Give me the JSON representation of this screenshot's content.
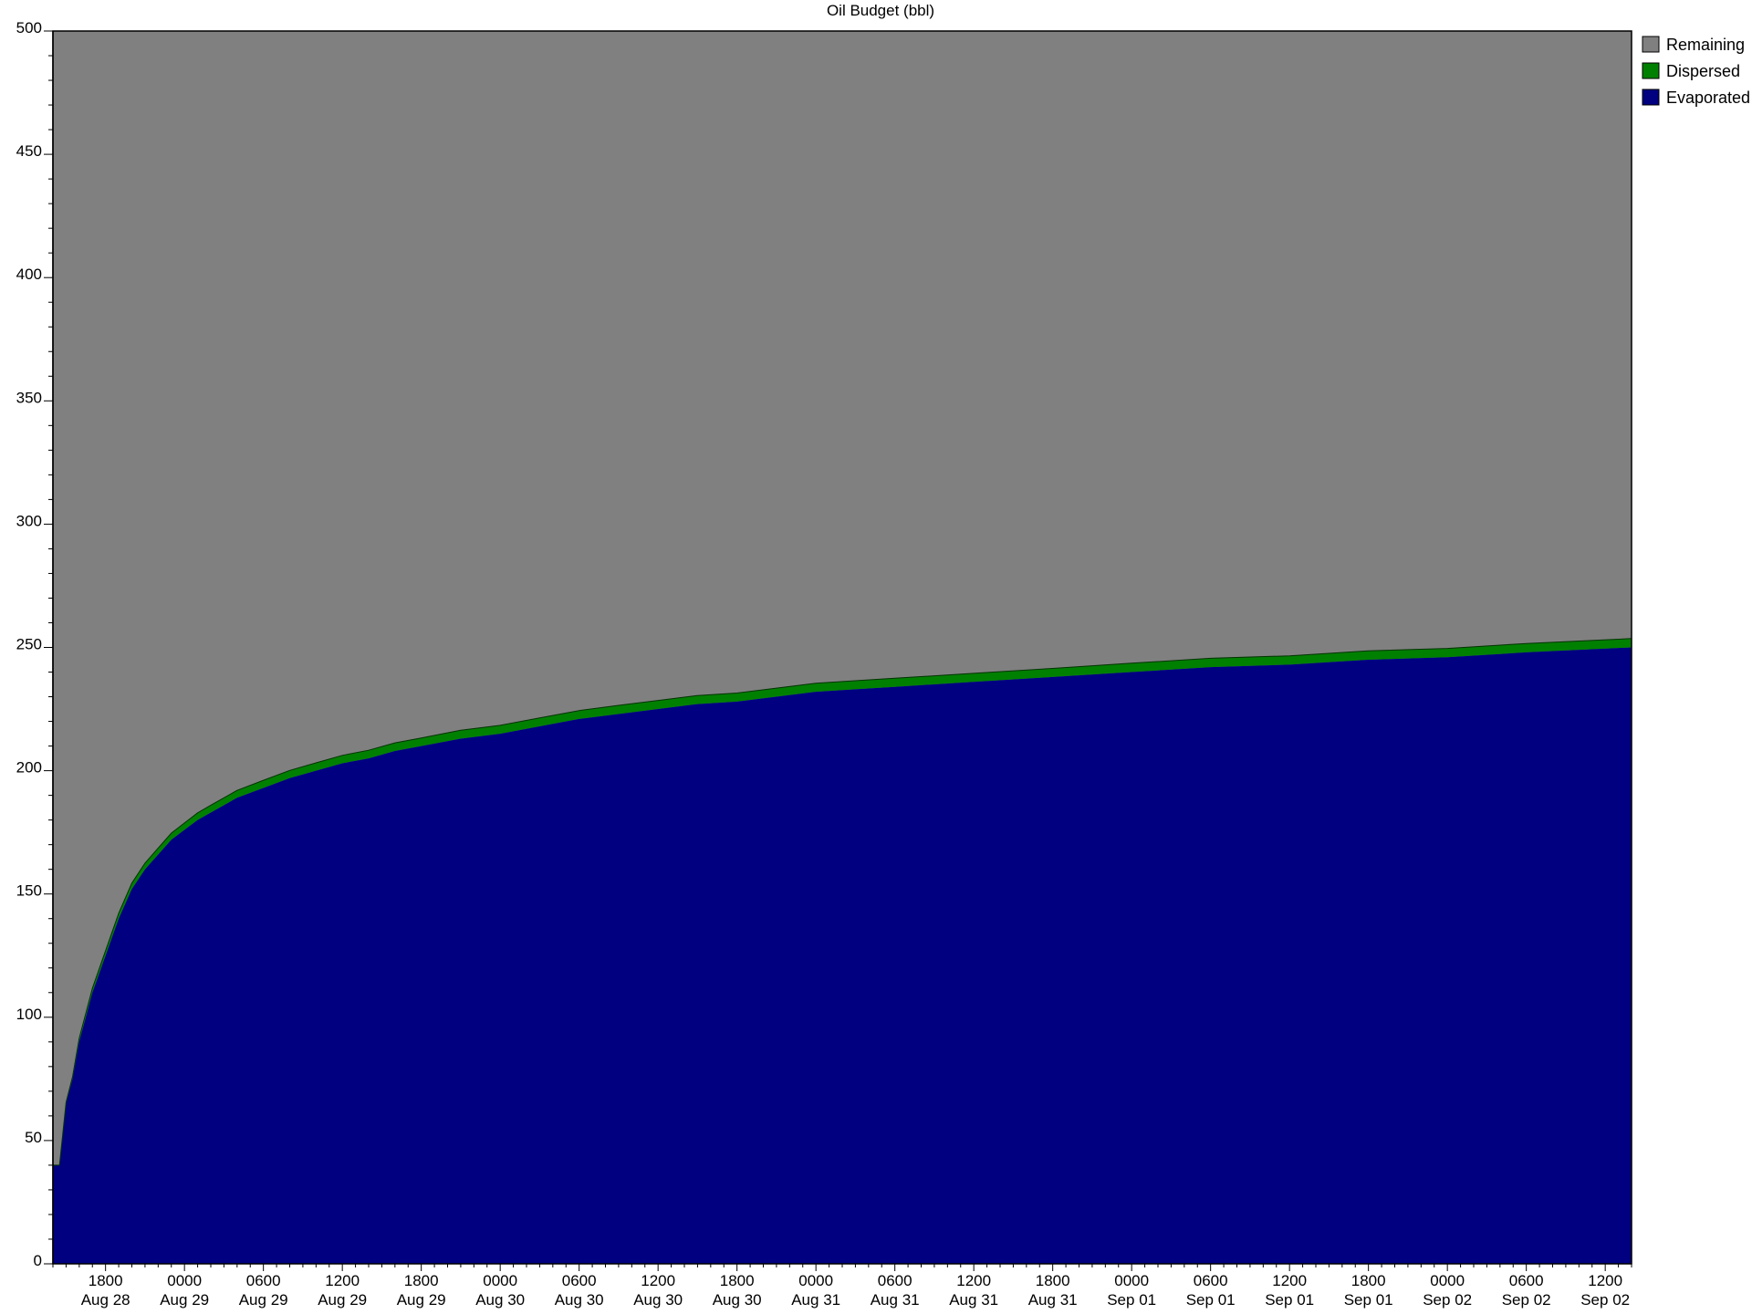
{
  "chart_data": {
    "type": "area",
    "stacked": true,
    "title": "Oil Budget (bbl)",
    "xlabel": "",
    "ylabel": "",
    "ylim": [
      0,
      500
    ],
    "y_ticks": [
      0,
      50,
      100,
      150,
      200,
      250,
      300,
      350,
      400,
      450,
      500
    ],
    "y_minor_step": 10,
    "x_unit": "hours from start",
    "xlim": [
      0,
      120
    ],
    "x_ticks": [
      {
        "hour": 4,
        "time": "1800",
        "date": "Aug 28"
      },
      {
        "hour": 10,
        "time": "0000",
        "date": "Aug 29"
      },
      {
        "hour": 16,
        "time": "0600",
        "date": "Aug 29"
      },
      {
        "hour": 22,
        "time": "1200",
        "date": "Aug 29"
      },
      {
        "hour": 28,
        "time": "1800",
        "date": "Aug 29"
      },
      {
        "hour": 34,
        "time": "0000",
        "date": "Aug 30"
      },
      {
        "hour": 40,
        "time": "0600",
        "date": "Aug 30"
      },
      {
        "hour": 46,
        "time": "1200",
        "date": "Aug 30"
      },
      {
        "hour": 52,
        "time": "1800",
        "date": "Aug 30"
      },
      {
        "hour": 58,
        "time": "0000",
        "date": "Aug 31"
      },
      {
        "hour": 64,
        "time": "0600",
        "date": "Aug 31"
      },
      {
        "hour": 70,
        "time": "1200",
        "date": "Aug 31"
      },
      {
        "hour": 76,
        "time": "1800",
        "date": "Aug 31"
      },
      {
        "hour": 82,
        "time": "0000",
        "date": "Sep 01"
      },
      {
        "hour": 88,
        "time": "0600",
        "date": "Sep 01"
      },
      {
        "hour": 94,
        "time": "1200",
        "date": "Sep 01"
      },
      {
        "hour": 100,
        "time": "1800",
        "date": "Sep 01"
      },
      {
        "hour": 106,
        "time": "0000",
        "date": "Sep 02"
      },
      {
        "hour": 112,
        "time": "0600",
        "date": "Sep 02"
      },
      {
        "hour": 118,
        "time": "1200",
        "date": "Sep 02"
      }
    ],
    "x": [
      0,
      0.5,
      1,
      1.5,
      2,
      3,
      4,
      5,
      6,
      7,
      8,
      9,
      10,
      11,
      12,
      14,
      16,
      18,
      20,
      22,
      24,
      26,
      28,
      31,
      34,
      37,
      40,
      43,
      46,
      49,
      52,
      55,
      58,
      61,
      64,
      70,
      76,
      82,
      88,
      94,
      100,
      106,
      112,
      120
    ],
    "series": [
      {
        "name": "Evaporated",
        "color": "#000080",
        "values": [
          40,
          40,
          65,
          75,
          90,
          110,
          125,
          140,
          152,
          160,
          166,
          172,
          176,
          180,
          183,
          189,
          193,
          197,
          200,
          203,
          205,
          208,
          210,
          213,
          215,
          218,
          221,
          223,
          225,
          227,
          228,
          230,
          232,
          233,
          234,
          236,
          238,
          240,
          242,
          243,
          245,
          246,
          248,
          250
        ]
      },
      {
        "name": "Dispersed",
        "color": "#008000",
        "values": [
          0,
          0,
          0.5,
          1,
          1.5,
          1.8,
          2,
          2.2,
          2.4,
          2.5,
          2.6,
          2.7,
          2.8,
          2.9,
          3,
          3,
          3.1,
          3.1,
          3.2,
          3.2,
          3.3,
          3.3,
          3.3,
          3.4,
          3.4,
          3.4,
          3.4,
          3.5,
          3.5,
          3.5,
          3.5,
          3.5,
          3.5,
          3.5,
          3.5,
          3.5,
          3.5,
          3.6,
          3.6,
          3.6,
          3.6,
          3.6,
          3.6,
          3.6
        ]
      },
      {
        "name": "Remaining",
        "color": "#808080",
        "fills_to_top": true
      }
    ],
    "legend": {
      "placement": "right-top",
      "entries": [
        {
          "label": "Remaining",
          "color": "#808080"
        },
        {
          "label": "Dispersed",
          "color": "#008000"
        },
        {
          "label": "Evaporated",
          "color": "#000080"
        }
      ]
    }
  }
}
